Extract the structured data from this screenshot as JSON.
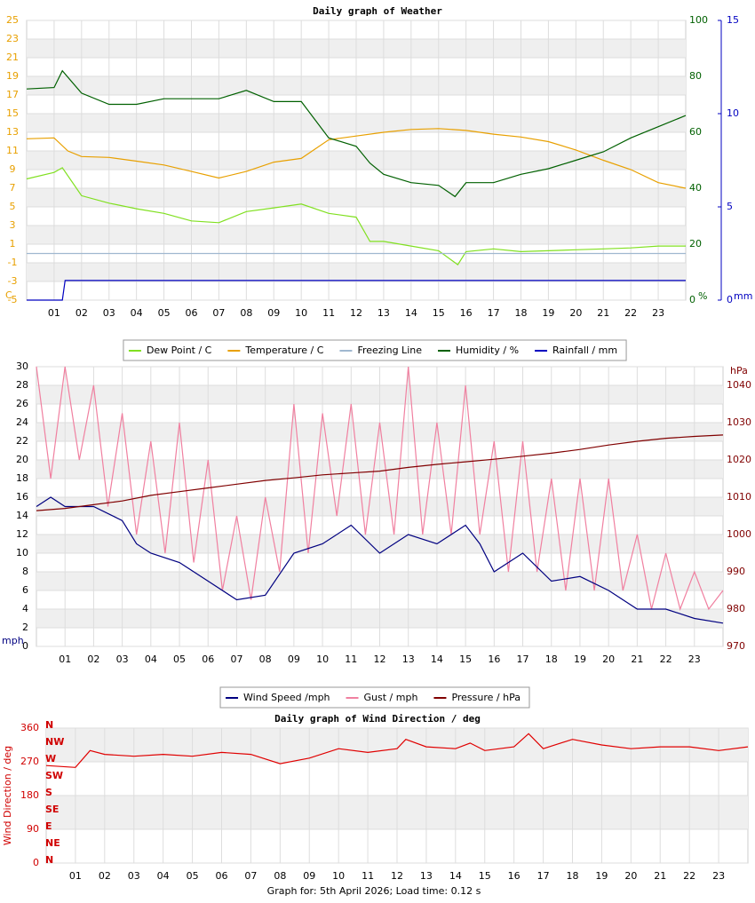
{
  "chart_data": [
    {
      "type": "line",
      "title": "Daily graph of Weather",
      "y_unit": "C",
      "y2_unit": "%",
      "y3_unit": "mm",
      "xlim": [
        0,
        24
      ],
      "xticks": [
        {
          "value": 1,
          "label": "01"
        },
        {
          "value": 2,
          "label": "02"
        },
        {
          "value": 3,
          "label": "03"
        },
        {
          "value": 4,
          "label": "04"
        },
        {
          "value": 5,
          "label": "05"
        },
        {
          "value": 6,
          "label": "06"
        },
        {
          "value": 7,
          "label": "07"
        },
        {
          "value": 8,
          "label": "08"
        },
        {
          "value": 9,
          "label": "09"
        },
        {
          "value": 10,
          "label": "10"
        },
        {
          "value": 11,
          "label": "11"
        },
        {
          "value": 12,
          "label": "12"
        },
        {
          "value": 13,
          "label": "13"
        },
        {
          "value": 14,
          "label": "14"
        },
        {
          "value": 15,
          "label": "15"
        },
        {
          "value": 16,
          "label": "16"
        },
        {
          "value": 17,
          "label": "17"
        },
        {
          "value": 18,
          "label": "18"
        },
        {
          "value": 19,
          "label": "19"
        },
        {
          "value": 20,
          "label": "20"
        },
        {
          "value": 21,
          "label": "21"
        },
        {
          "value": 22,
          "label": "22"
        },
        {
          "value": 23,
          "label": "23"
        }
      ],
      "ylim": [
        -5,
        25
      ],
      "yticks": [
        -5,
        -3,
        -1,
        1,
        3,
        5,
        7,
        9,
        11,
        13,
        15,
        17,
        19,
        21,
        23,
        25
      ],
      "y2lim": [
        0,
        100
      ],
      "y2ticks": [
        0,
        20,
        40,
        60,
        80,
        100
      ],
      "y3lim": [
        0,
        15
      ],
      "y3ticks": [
        0,
        5,
        10,
        15
      ],
      "grid": true,
      "series": [
        {
          "name": "Dew Point / C",
          "color": "#80e020",
          "x": [
            0,
            1,
            1.3,
            2,
            3,
            4,
            5,
            6,
            7,
            8,
            9,
            10,
            11,
            12,
            12.5,
            13,
            14,
            15,
            15.7,
            16,
            17,
            18,
            19,
            20,
            21,
            22,
            23,
            24
          ],
          "values": [
            8,
            8.7,
            9.2,
            6.2,
            5.4,
            4.8,
            4.3,
            3.5,
            3.3,
            4.5,
            4.9,
            5.3,
            4.3,
            3.9,
            1.3,
            1.3,
            0.8,
            0.3,
            -1.2,
            0.2,
            0.5,
            0.2,
            0.3,
            0.4,
            0.5,
            0.6,
            0.8,
            0.8
          ]
        },
        {
          "name": "Temperature / C",
          "color": "#e8a000",
          "x": [
            0,
            1,
            1.5,
            2,
            3,
            4,
            5,
            6,
            7,
            8,
            9,
            10,
            11,
            12,
            13,
            14,
            15,
            16,
            17,
            18,
            19,
            20,
            21,
            22,
            23,
            24
          ],
          "values": [
            12.3,
            12.4,
            11,
            10.4,
            10.3,
            9.9,
            9.5,
            8.8,
            8.1,
            8.8,
            9.8,
            10.2,
            12.2,
            12.6,
            13,
            13.3,
            13.4,
            13.2,
            12.8,
            12.5,
            12,
            11.1,
            10,
            9,
            7.6,
            7
          ]
        },
        {
          "name": "Freezing Line",
          "color": "#a0b8d0",
          "x": [
            0,
            24
          ],
          "values": [
            0,
            0
          ]
        },
        {
          "name": "Humidity / %",
          "color": "#006000",
          "axis": "y2",
          "x": [
            0,
            1,
            1.3,
            2,
            3,
            4,
            5,
            6,
            7,
            8,
            9,
            10,
            11,
            12,
            12.5,
            13,
            14,
            15,
            15.6,
            16,
            17,
            18,
            19,
            20,
            21,
            22,
            23,
            24
          ],
          "values": [
            75.5,
            76,
            82,
            74,
            70,
            70,
            72,
            72,
            72,
            75,
            71,
            71,
            58,
            55,
            49,
            45,
            42,
            41,
            37,
            42,
            42,
            45,
            47,
            50,
            53,
            58,
            62,
            66
          ]
        },
        {
          "name": "Rainfall / mm",
          "color": "#0000c0",
          "axis": "y3",
          "x": [
            0,
            1.3,
            1.4,
            24
          ],
          "values": [
            0,
            0,
            1.05,
            1.05
          ]
        }
      ]
    },
    {
      "type": "line",
      "y_unit": "mph",
      "y2_unit": "hPa",
      "xlim": [
        0,
        24
      ],
      "xticks": [
        {
          "value": 1,
          "label": "01"
        },
        {
          "value": 2,
          "label": "02"
        },
        {
          "value": 3,
          "label": "03"
        },
        {
          "value": 4,
          "label": "04"
        },
        {
          "value": 5,
          "label": "05"
        },
        {
          "value": 6,
          "label": "06"
        },
        {
          "value": 7,
          "label": "07"
        },
        {
          "value": 8,
          "label": "08"
        },
        {
          "value": 9,
          "label": "09"
        },
        {
          "value": 10,
          "label": "10"
        },
        {
          "value": 11,
          "label": "11"
        },
        {
          "value": 12,
          "label": "12"
        },
        {
          "value": 13,
          "label": "13"
        },
        {
          "value": 14,
          "label": "14"
        },
        {
          "value": 15,
          "label": "15"
        },
        {
          "value": 16,
          "label": "16"
        },
        {
          "value": 17,
          "label": "17"
        },
        {
          "value": 18,
          "label": "18"
        },
        {
          "value": 19,
          "label": "19"
        },
        {
          "value": 20,
          "label": "20"
        },
        {
          "value": 21,
          "label": "21"
        },
        {
          "value": 22,
          "label": "22"
        },
        {
          "value": 23,
          "label": "23"
        }
      ],
      "ylim": [
        0,
        30
      ],
      "yticks": [
        0,
        2,
        4,
        6,
        8,
        10,
        12,
        14,
        16,
        18,
        20,
        22,
        24,
        26,
        28,
        30
      ],
      "y2lim": [
        970,
        1045
      ],
      "y2ticks": [
        970,
        980,
        990,
        1000,
        1010,
        1020,
        1030,
        1040
      ],
      "grid": true,
      "series": [
        {
          "name": "Wind Speed /mph",
          "color": "#000080",
          "x": [
            0,
            0.5,
            1,
            2,
            3,
            3.5,
            4,
            5,
            6,
            7,
            8,
            9,
            10,
            11,
            12,
            13,
            14,
            15,
            15.5,
            16,
            17,
            18,
            19,
            20,
            21,
            22,
            23,
            24
          ],
          "values": [
            15,
            16,
            15,
            15,
            13.5,
            11,
            10,
            9,
            7,
            5,
            5.5,
            10,
            11,
            13,
            10,
            12,
            11,
            13,
            11,
            8,
            10,
            7,
            7.5,
            6,
            4,
            4,
            3,
            2.5
          ]
        },
        {
          "name": "Gust / mph",
          "color": "#f080a0",
          "x": [
            0,
            0.5,
            1,
            1.5,
            2,
            2.5,
            3,
            3.5,
            4,
            4.5,
            5,
            5.5,
            6,
            6.5,
            7,
            7.5,
            8,
            8.5,
            9,
            9.5,
            10,
            10.5,
            11,
            11.5,
            12,
            12.5,
            13,
            13.5,
            14,
            14.5,
            15,
            15.5,
            16,
            16.5,
            17,
            17.5,
            18,
            18.5,
            19,
            19.5,
            20,
            20.5,
            21,
            21.5,
            22,
            22.5,
            23,
            23.5,
            24
          ],
          "values": [
            30,
            18,
            30,
            20,
            28,
            15,
            25,
            12,
            22,
            10,
            24,
            9,
            20,
            6,
            14,
            5,
            16,
            8,
            26,
            10,
            25,
            14,
            26,
            12,
            24,
            12,
            30,
            12,
            24,
            12,
            28,
            12,
            22,
            8,
            22,
            8,
            18,
            6,
            18,
            6,
            18,
            6,
            12,
            4,
            10,
            4,
            8,
            4,
            6
          ]
        },
        {
          "name": "Pressure / hPa",
          "color": "#800000",
          "axis": "y2",
          "x": [
            0,
            1,
            2,
            3,
            4,
            5,
            6,
            7,
            8,
            9,
            10,
            11,
            12,
            13,
            14,
            15,
            16,
            17,
            18,
            19,
            20,
            21,
            22,
            23,
            24
          ],
          "values": [
            1006.4,
            1007,
            1008,
            1009,
            1010.5,
            1011.5,
            1012.5,
            1013.5,
            1014.5,
            1015.2,
            1016,
            1016.5,
            1017,
            1018,
            1018.8,
            1019.5,
            1020.2,
            1021,
            1021.8,
            1022.8,
            1024,
            1025,
            1025.8,
            1026.3,
            1026.7
          ]
        }
      ]
    },
    {
      "type": "line",
      "title": "Daily graph of Wind Direction / deg",
      "ylabel": "Wind Direction / deg",
      "compass": [
        "N",
        "NW",
        "W",
        "SW",
        "S",
        "SE",
        "E",
        "NE",
        "N"
      ],
      "xlim": [
        0,
        24
      ],
      "xticks": [
        {
          "value": 1,
          "label": "01"
        },
        {
          "value": 2,
          "label": "02"
        },
        {
          "value": 3,
          "label": "03"
        },
        {
          "value": 4,
          "label": "04"
        },
        {
          "value": 5,
          "label": "05"
        },
        {
          "value": 6,
          "label": "06"
        },
        {
          "value": 7,
          "label": "07"
        },
        {
          "value": 8,
          "label": "08"
        },
        {
          "value": 9,
          "label": "09"
        },
        {
          "value": 10,
          "label": "10"
        },
        {
          "value": 11,
          "label": "11"
        },
        {
          "value": 12,
          "label": "12"
        },
        {
          "value": 13,
          "label": "13"
        },
        {
          "value": 14,
          "label": "14"
        },
        {
          "value": 15,
          "label": "15"
        },
        {
          "value": 16,
          "label": "16"
        },
        {
          "value": 17,
          "label": "17"
        },
        {
          "value": 18,
          "label": "18"
        },
        {
          "value": 19,
          "label": "19"
        },
        {
          "value": 20,
          "label": "20"
        },
        {
          "value": 21,
          "label": "21"
        },
        {
          "value": 22,
          "label": "22"
        },
        {
          "value": 23,
          "label": "23"
        }
      ],
      "ylim": [
        0,
        360
      ],
      "yticks": [
        0,
        90,
        180,
        270,
        360
      ],
      "grid": true,
      "series": [
        {
          "color": "#e00000",
          "x": [
            0,
            1,
            1.5,
            2,
            3,
            4,
            5,
            6,
            7,
            8,
            9,
            10,
            11,
            12,
            12.3,
            13,
            14,
            14.5,
            15,
            16,
            16.5,
            17,
            18,
            19,
            20,
            21,
            22,
            23,
            24
          ],
          "values": [
            260,
            255,
            300,
            290,
            285,
            290,
            285,
            295,
            290,
            265,
            280,
            305,
            295,
            305,
            330,
            310,
            305,
            320,
            300,
            310,
            345,
            305,
            330,
            315,
            305,
            310,
            310,
            300,
            310
          ]
        }
      ]
    }
  ],
  "footer": "Graph for: 5th April 2026; Load time: 0.12 s"
}
